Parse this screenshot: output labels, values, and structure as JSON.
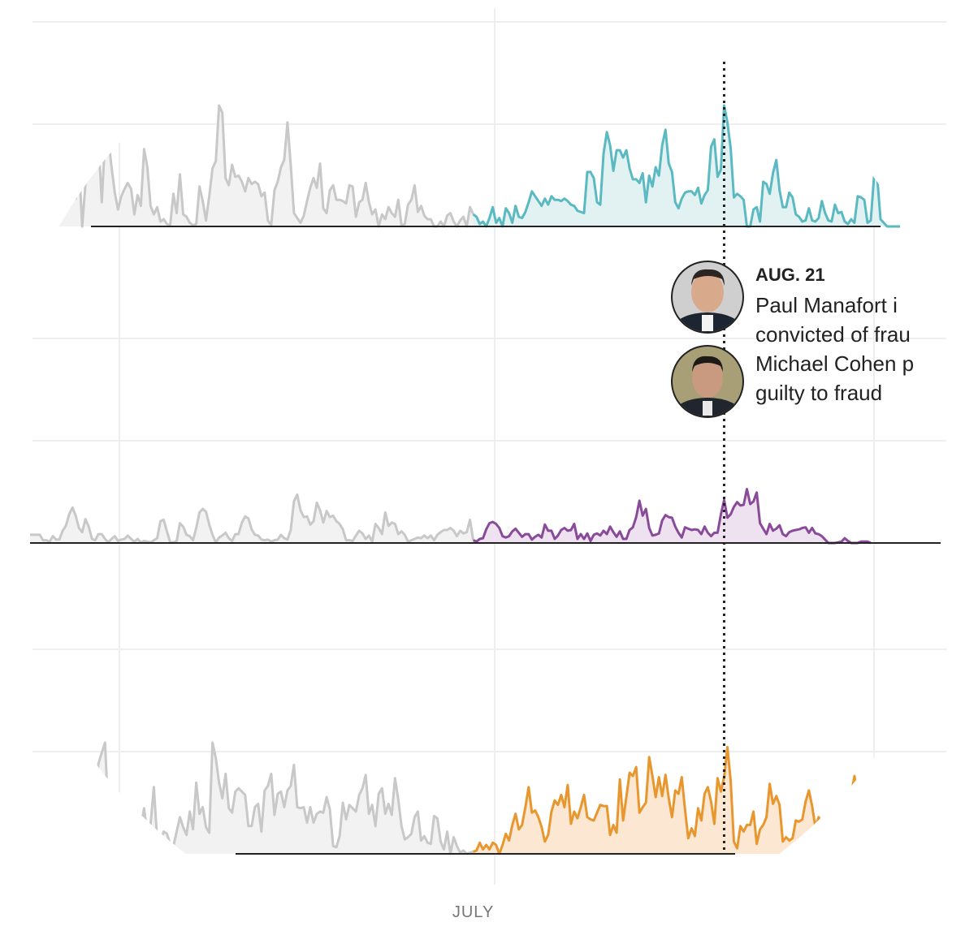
{
  "colors": {
    "before": "#c8c8c8",
    "beforeFill": "#f2f2f2",
    "panels": [
      "#5ab9c1",
      "#8a4a9a",
      "#e8962e"
    ],
    "fills": [
      "#e2f2f3",
      "#eee2f0",
      "#fbe7d2"
    ],
    "grid": "#eeeeee",
    "axis": "#222222",
    "marker": "#222222"
  },
  "icons": {
    "manafort": "manafort-portrait-icon",
    "cohen": "cohen-portrait-icon"
  },
  "annotation": {
    "date": "AUG. 21",
    "lines": [
      "Paul Manafort i",
      "convicted of frau",
      "Michael Cohen p",
      "guilty to fraud"
    ]
  },
  "chart_data": {
    "type": "area",
    "title": "",
    "xlabel": "",
    "ylabel": "",
    "x_tick_labels": [
      "JULY"
    ],
    "x_range": [
      0,
      259
    ],
    "split_index": 136,
    "event_index": 213,
    "event_label": "AUG. 21",
    "series": [
      {
        "name": "panel-1",
        "ylim": [
          0,
          100
        ],
        "values": [
          10,
          14,
          4,
          16,
          24,
          16,
          10,
          36,
          21,
          20,
          38,
          26,
          45,
          25,
          23,
          53,
          0,
          35,
          46,
          60,
          57,
          72,
          20,
          72,
          75,
          49,
          28,
          14,
          25,
          31,
          36,
          31,
          10,
          26,
          17,
          64,
          49,
          17,
          10,
          16,
          4,
          6,
          2,
          1,
          27,
          11,
          43,
          10,
          8,
          3,
          1,
          2,
          33,
          21,
          5,
          25,
          48,
          54,
          100,
          94,
          40,
          34,
          51,
          41,
          42,
          37,
          29,
          40,
          35,
          37,
          35,
          25,
          28,
          5,
          1,
          30,
          37,
          49,
          55,
          86,
          51,
          11,
          7,
          3,
          9,
          21,
          32,
          40,
          32,
          52,
          15,
          11,
          30,
          34,
          22,
          22,
          21,
          19,
          34,
          33,
          8,
          20,
          22,
          36,
          20,
          10,
          14,
          0,
          10,
          6,
          16,
          11,
          8,
          22,
          1,
          2,
          18,
          22,
          34,
          12,
          17,
          9,
          6,
          6,
          0,
          0,
          4,
          0,
          9,
          11,
          4,
          0,
          5,
          8,
          0,
          16,
          10,
          8,
          2,
          4,
          0,
          7,
          16,
          3,
          7,
          0,
          15,
          11,
          3,
          17,
          8,
          7,
          12,
          20,
          29,
          25,
          21,
          17,
          23,
          18,
          25,
          22,
          22,
          21,
          23,
          21,
          18,
          17,
          13,
          12,
          11,
          45,
          45,
          40,
          20,
          18,
          60,
          78,
          67,
          46,
          63,
          63,
          57,
          63,
          48,
          39,
          39,
          36,
          44,
          20,
          42,
          33,
          49,
          42,
          67,
          80,
          52,
          45,
          20,
          15,
          23,
          28,
          29,
          29,
          26,
          32,
          19,
          26,
          30,
          66,
          72,
          41,
          47,
          100,
          86,
          65,
          24,
          27,
          25,
          22,
          0,
          0,
          14,
          16,
          4,
          37,
          35,
          27,
          44,
          55,
          30,
          16,
          16,
          28,
          24,
          10,
          8,
          4,
          5,
          15,
          5,
          4,
          7,
          21,
          11,
          5,
          4,
          18,
          11,
          12,
          4,
          2,
          6,
          3,
          25,
          24,
          22,
          3,
          5,
          41,
          40,
          6,
          3,
          0,
          0,
          0,
          0,
          0
        ]
      },
      {
        "name": "panel-2",
        "ylim": [
          0,
          100
        ],
        "values": [
          12,
          12,
          12,
          12,
          4,
          4,
          2,
          10,
          5,
          5,
          18,
          25,
          42,
          52,
          40,
          22,
          16,
          35,
          24,
          6,
          4,
          13,
          13,
          6,
          1,
          6,
          10,
          3,
          5,
          6,
          11,
          6,
          2,
          6,
          1,
          3,
          2,
          1,
          4,
          7,
          32,
          34,
          17,
          1,
          1,
          3,
          29,
          24,
          12,
          10,
          4,
          22,
          45,
          50,
          46,
          27,
          12,
          1,
          8,
          11,
          15,
          7,
          3,
          13,
          13,
          30,
          39,
          36,
          20,
          12,
          11,
          5,
          4,
          5,
          2,
          4,
          5,
          12,
          7,
          5,
          19,
          61,
          71,
          48,
          38,
          39,
          27,
          32,
          59,
          48,
          30,
          47,
          38,
          40,
          32,
          28,
          20,
          4,
          4,
          3,
          11,
          18,
          14,
          6,
          11,
          2,
          28,
          22,
          13,
          45,
          25,
          30,
          28,
          13,
          17,
          12,
          2,
          4,
          6,
          8,
          7,
          11,
          7,
          11,
          4,
          12,
          16,
          19,
          19,
          22,
          18,
          10,
          18,
          14,
          16,
          34,
          4,
          2,
          6,
          7,
          20,
          29,
          31,
          28,
          22,
          10,
          8,
          10,
          17,
          21,
          15,
          9,
          13,
          13,
          5,
          9,
          12,
          8,
          27,
          18,
          18,
          6,
          11,
          19,
          22,
          18,
          19,
          28,
          6,
          13,
          6,
          14,
          3,
          12,
          14,
          11,
          18,
          13,
          24,
          16,
          9,
          17,
          6,
          6,
          19,
          23,
          38,
          62,
          40,
          50,
          22,
          11,
          12,
          14,
          33,
          41,
          38,
          37,
          24,
          15,
          8,
          23,
          21,
          19,
          20,
          19,
          13,
          24,
          15,
          10,
          15,
          15,
          42,
          63,
          37,
          42,
          53,
          60,
          55,
          56,
          79,
          57,
          61,
          74,
          29,
          21,
          13,
          28,
          18,
          21,
          26,
          13,
          10,
          16,
          18,
          19,
          20,
          22,
          23,
          15,
          22,
          14,
          13,
          10,
          5,
          0,
          0,
          0,
          1,
          2,
          7,
          3,
          0,
          0,
          0,
          2,
          2,
          2,
          0
        ]
      },
      {
        "name": "panel-3",
        "ylim": [
          0,
          100
        ],
        "values": [
          24,
          24,
          19,
          30,
          31,
          29,
          16,
          27,
          48,
          55,
          25,
          41,
          69,
          18,
          20,
          32,
          20,
          3,
          25,
          61,
          57,
          81,
          91,
          100,
          36,
          30,
          51,
          50,
          33,
          42,
          24,
          31,
          38,
          36,
          24,
          41,
          17,
          27,
          60,
          13,
          12,
          20,
          18,
          9,
          7,
          20,
          33,
          24,
          17,
          38,
          22,
          64,
          36,
          42,
          24,
          19,
          100,
          86,
          64,
          50,
          72,
          41,
          37,
          56,
          59,
          56,
          53,
          25,
          25,
          42,
          45,
          20,
          57,
          61,
          72,
          35,
          54,
          56,
          42,
          57,
          61,
          80,
          42,
          41,
          42,
          28,
          42,
          28,
          36,
          38,
          37,
          51,
          40,
          7,
          6,
          16,
          46,
          31,
          44,
          41,
          38,
          53,
          59,
          71,
          36,
          44,
          25,
          54,
          59,
          36,
          45,
          35,
          68,
          49,
          25,
          13,
          15,
          18,
          33,
          38,
          12,
          16,
          10,
          9,
          34,
          32,
          11,
          4,
          20,
          0,
          15,
          7,
          1,
          3,
          0,
          1,
          2,
          3,
          10,
          4,
          8,
          4,
          10,
          8,
          0,
          8,
          18,
          12,
          26,
          36,
          22,
          26,
          42,
          60,
          37,
          39,
          33,
          24,
          11,
          17,
          38,
          48,
          44,
          53,
          42,
          62,
          27,
          38,
          32,
          42,
          53,
          33,
          31,
          30,
          37,
          44,
          43,
          43,
          17,
          26,
          19,
          67,
          30,
          51,
          73,
          70,
          78,
          37,
          42,
          46,
          87,
          70,
          51,
          69,
          52,
          71,
          50,
          33,
          57,
          54,
          69,
          40,
          14,
          23,
          16,
          41,
          30,
          54,
          60,
          47,
          27,
          68,
          56,
          69,
          96,
          66,
          11,
          5,
          25,
          20,
          26,
          26,
          38,
          9,
          22,
          26,
          33,
          63,
          45,
          52,
          44,
          11,
          15,
          12,
          14,
          30,
          29,
          31,
          47,
          57,
          43,
          24,
          33,
          28,
          18,
          10,
          32,
          19,
          16,
          22,
          42,
          34,
          54,
          70,
          51,
          8,
          40,
          12,
          12,
          25,
          49,
          49,
          33,
          47,
          43,
          69
        ]
      }
    ]
  }
}
